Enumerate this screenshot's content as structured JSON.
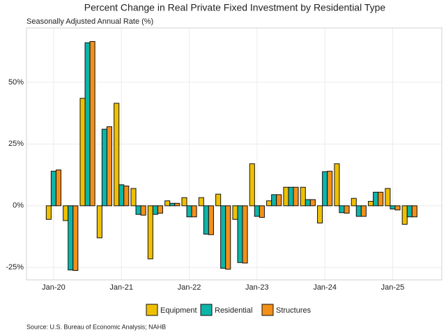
{
  "chart_data": {
    "type": "bar",
    "title": "Percent Change in Real Private Fixed Investment by Residential Type",
    "subtitle": "Seasonally Adjusted Annual Rate (%)",
    "source": "Source: U.S. Bureau of Economic Analysis; NAHB",
    "categories": [
      "Jan-20",
      null,
      null,
      null,
      "Jan-21",
      null,
      null,
      null,
      "Jan-22",
      null,
      null,
      null,
      "Jan-23",
      null,
      null,
      null,
      "Jan-24",
      null,
      null,
      null,
      "Jan-25",
      null
    ],
    "series": [
      {
        "name": "Equipment",
        "color": "#efc000",
        "values": [
          -5.5,
          -6,
          43.5,
          -13,
          41.5,
          7,
          -21.5,
          2,
          3.3,
          3.3,
          4.7,
          -5.5,
          17,
          2,
          7.5,
          7.5,
          -7,
          17,
          3,
          1.8,
          7,
          -7.5
        ]
      },
      {
        "name": "Residential",
        "color": "#0db5a8",
        "values": [
          14,
          -26,
          66,
          31,
          8.5,
          -3.5,
          -3.5,
          1,
          -4.5,
          -11.5,
          -25.3,
          -23,
          -4.3,
          4.5,
          7.5,
          2.5,
          13.8,
          -2.8,
          -4.3,
          5.5,
          -1.3,
          -4.5
        ]
      },
      {
        "name": "Structures",
        "color": "#f39019",
        "values": [
          14.5,
          -26.2,
          66.5,
          32,
          8,
          -3.8,
          -3,
          1,
          -4.5,
          -11.7,
          -25.7,
          -23.2,
          -4.7,
          4.5,
          7.5,
          2.5,
          14,
          -3,
          -4.3,
          5.5,
          -1.7,
          -4.5
        ]
      }
    ],
    "ylim": [
      -30,
      72
    ],
    "yticks": [
      {
        "value": -25,
        "label": "-25%"
      },
      {
        "value": 0,
        "label": "0%"
      },
      {
        "value": 25,
        "label": "25%"
      },
      {
        "value": 50,
        "label": "50%"
      }
    ],
    "grid": true,
    "legend": "bottom"
  }
}
